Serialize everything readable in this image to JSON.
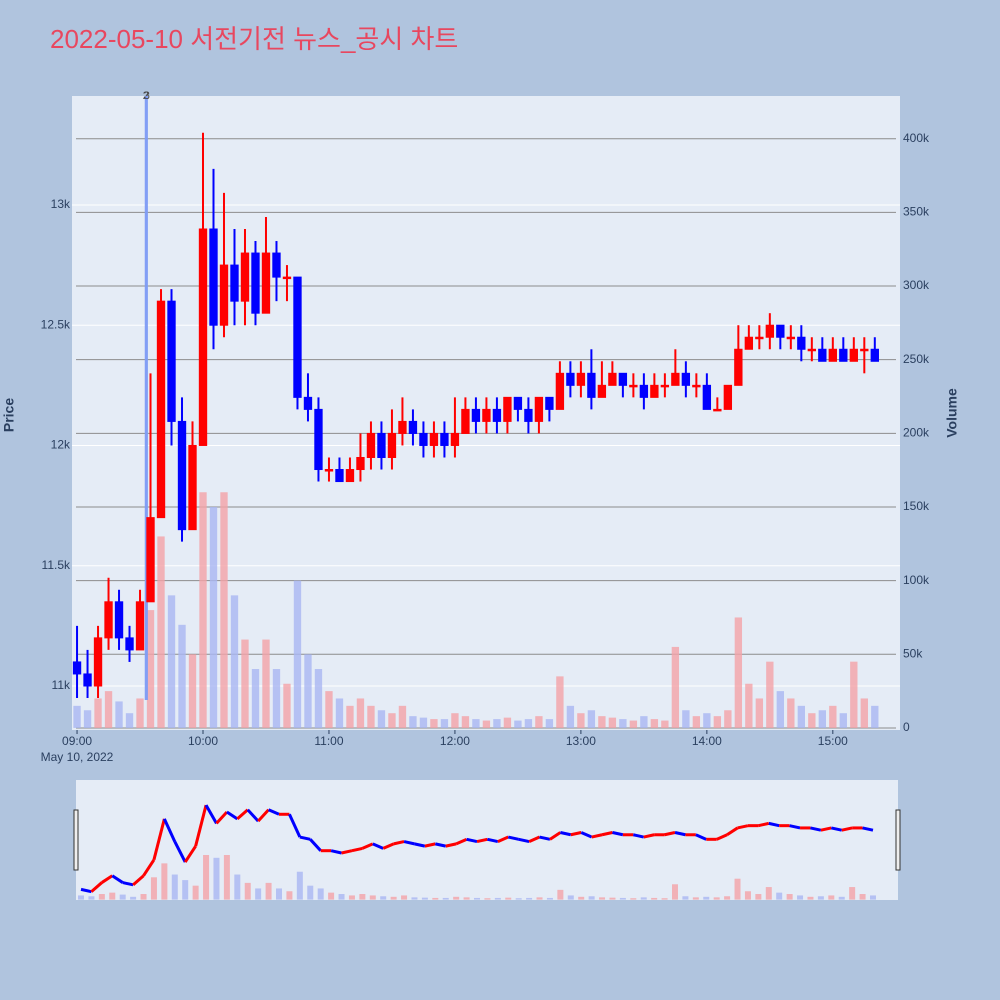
{
  "chart_data": {
    "type": "candlestick",
    "title": "2022-05-10 서전기전 뉴스_공시 차트",
    "ylabel": "Price",
    "y2label": "Volume",
    "x_date_label": "May 10, 2022",
    "x": [
      "2022-05-10 09:00",
      "2022-05-10 09:05",
      "2022-05-10 09:10",
      "2022-05-10 09:15",
      "2022-05-10 09:20",
      "2022-05-10 09:25",
      "2022-05-10 09:30",
      "2022-05-10 09:35",
      "2022-05-10 09:40",
      "2022-05-10 09:45",
      "2022-05-10 09:50",
      "2022-05-10 09:55",
      "2022-05-10 10:00",
      "2022-05-10 10:05",
      "2022-05-10 10:10",
      "2022-05-10 10:15",
      "2022-05-10 10:20",
      "2022-05-10 10:25",
      "2022-05-10 10:30",
      "2022-05-10 10:35",
      "2022-05-10 10:40",
      "2022-05-10 10:45",
      "2022-05-10 10:50",
      "2022-05-10 10:55",
      "2022-05-10 11:00",
      "2022-05-10 11:05",
      "2022-05-10 11:10",
      "2022-05-10 11:15",
      "2022-05-10 11:20",
      "2022-05-10 11:25",
      "2022-05-10 11:30",
      "2022-05-10 11:35",
      "2022-05-10 11:40",
      "2022-05-10 11:45",
      "2022-05-10 11:50",
      "2022-05-10 11:55",
      "2022-05-10 12:00",
      "2022-05-10 12:05",
      "2022-05-10 12:10",
      "2022-05-10 12:15",
      "2022-05-10 12:20",
      "2022-05-10 12:25",
      "2022-05-10 12:30",
      "2022-05-10 12:35",
      "2022-05-10 12:40",
      "2022-05-10 12:45",
      "2022-05-10 12:50",
      "2022-05-10 12:55",
      "2022-05-10 13:00",
      "2022-05-10 13:05",
      "2022-05-10 13:10",
      "2022-05-10 13:15",
      "2022-05-10 13:20",
      "2022-05-10 13:25",
      "2022-05-10 13:30",
      "2022-05-10 13:35",
      "2022-05-10 13:40",
      "2022-05-10 13:45",
      "2022-05-10 13:50",
      "2022-05-10 13:55",
      "2022-05-10 14:00",
      "2022-05-10 14:05",
      "2022-05-10 14:10",
      "2022-05-10 14:15",
      "2022-05-10 14:20",
      "2022-05-10 14:25",
      "2022-05-10 14:30",
      "2022-05-10 14:35",
      "2022-05-10 14:40",
      "2022-05-10 14:45",
      "2022-05-10 14:50",
      "2022-05-10 14:55",
      "2022-05-10 15:00",
      "2022-05-10 15:05",
      "2022-05-10 15:10",
      "2022-05-10 15:15",
      "2022-05-10 15:20"
    ],
    "open": [
      11100,
      11050,
      11000,
      11200,
      11350,
      11200,
      11150,
      11350,
      11700,
      12600,
      12100,
      11650,
      12000,
      12900,
      12500,
      12750,
      12600,
      12800,
      12550,
      12800,
      12700,
      12700,
      12200,
      12150,
      11900,
      11900,
      11850,
      11900,
      11950,
      12050,
      11950,
      12050,
      12100,
      12050,
      12000,
      12050,
      12000,
      12050,
      12150,
      12100,
      12150,
      12100,
      12200,
      12150,
      12100,
      12200,
      12150,
      12300,
      12250,
      12300,
      12200,
      12250,
      12300,
      12250,
      12250,
      12200,
      12250,
      12250,
      12300,
      12250,
      12250,
      12150,
      12150,
      12250,
      12400,
      12450,
      12450,
      12500,
      12450,
      12450,
      12400,
      12400,
      12350,
      12400,
      12350,
      12400,
      12400
    ],
    "high": [
      11250,
      11150,
      11250,
      11450,
      11400,
      11250,
      11400,
      12300,
      12650,
      12650,
      12200,
      12100,
      13300,
      13150,
      13050,
      12900,
      12900,
      12850,
      12950,
      12850,
      12750,
      12700,
      12300,
      12200,
      11950,
      11950,
      11950,
      12050,
      12100,
      12100,
      12150,
      12200,
      12150,
      12100,
      12100,
      12100,
      12200,
      12200,
      12200,
      12200,
      12200,
      12200,
      12200,
      12200,
      12200,
      12200,
      12350,
      12350,
      12350,
      12400,
      12350,
      12350,
      12300,
      12300,
      12300,
      12300,
      12300,
      12400,
      12350,
      12300,
      12300,
      12200,
      12250,
      12500,
      12500,
      12500,
      12550,
      12500,
      12500,
      12500,
      12450,
      12450,
      12450,
      12450,
      12450,
      12450,
      12450
    ],
    "low": [
      10950,
      10950,
      10950,
      11150,
      11150,
      11100,
      11150,
      11350,
      11700,
      12000,
      11600,
      11650,
      12000,
      12400,
      12450,
      12500,
      12500,
      12500,
      12550,
      12600,
      12600,
      12150,
      12100,
      11850,
      11850,
      11850,
      11850,
      11850,
      11900,
      11900,
      11900,
      12000,
      12000,
      11950,
      11950,
      11950,
      11950,
      12050,
      12050,
      12050,
      12050,
      12050,
      12100,
      12050,
      12050,
      12100,
      12150,
      12200,
      12200,
      12150,
      12200,
      12250,
      12200,
      12200,
      12150,
      12200,
      12200,
      12250,
      12200,
      12200,
      12150,
      12150,
      12150,
      12250,
      12400,
      12400,
      12400,
      12400,
      12400,
      12350,
      12350,
      12350,
      12350,
      12350,
      12350,
      12300,
      12350
    ],
    "close": [
      11050,
      11000,
      11200,
      11350,
      11200,
      11150,
      11350,
      11700,
      12600,
      12100,
      11650,
      12000,
      12900,
      12500,
      12750,
      12600,
      12800,
      12550,
      12800,
      12700,
      12700,
      12200,
      12150,
      11900,
      11900,
      11850,
      11900,
      11950,
      12050,
      11950,
      12050,
      12100,
      12050,
      12000,
      12050,
      12000,
      12050,
      12150,
      12100,
      12150,
      12100,
      12200,
      12150,
      12100,
      12200,
      12150,
      12300,
      12250,
      12300,
      12200,
      12250,
      12300,
      12250,
      12250,
      12200,
      12250,
      12250,
      12300,
      12250,
      12250,
      12150,
      12150,
      12250,
      12400,
      12450,
      12450,
      12500,
      12450,
      12450,
      12400,
      12400,
      12350,
      12400,
      12350,
      12400,
      12400,
      12350
    ],
    "volume": [
      15000,
      12000,
      20000,
      25000,
      18000,
      10000,
      20000,
      80000,
      130000,
      90000,
      70000,
      50000,
      160000,
      150000,
      160000,
      90000,
      60000,
      40000,
      60000,
      40000,
      30000,
      100000,
      50000,
      40000,
      25000,
      20000,
      15000,
      20000,
      15000,
      12000,
      10000,
      15000,
      8000,
      7000,
      6000,
      6000,
      10000,
      8000,
      6000,
      5000,
      6000,
      7000,
      5000,
      6000,
      8000,
      6000,
      35000,
      15000,
      10000,
      12000,
      8000,
      7000,
      6000,
      5000,
      8000,
      6000,
      5000,
      55000,
      12000,
      8000,
      10000,
      8000,
      12000,
      75000,
      30000,
      20000,
      45000,
      25000,
      20000,
      15000,
      10000,
      12000,
      15000,
      10000,
      45000,
      20000,
      15000
    ],
    "increasing_color": "#ff0000",
    "decreasing_color": "#0000ff",
    "volume_increasing_color": "#f4a3a8",
    "volume_decreasing_color": "#a9b6f2",
    "xlim": [
      "2022-05-10 08:57:36",
      "2022-05-10 15:32:00"
    ],
    "xticks": [
      {
        "value": "2022-05-10 09:00",
        "label": "09:00"
      },
      {
        "value": "2022-05-10 10:00",
        "label": "10:00"
      },
      {
        "value": "2022-05-10 11:00",
        "label": "11:00"
      },
      {
        "value": "2022-05-10 12:00",
        "label": "12:00"
      },
      {
        "value": "2022-05-10 13:00",
        "label": "13:00"
      },
      {
        "value": "2022-05-10 14:00",
        "label": "14:00"
      },
      {
        "value": "2022-05-10 15:00",
        "label": "15:00"
      }
    ],
    "ylim": [
      10817,
      13453
    ],
    "yticks": [
      {
        "value": 11000,
        "label": "11k"
      },
      {
        "value": 11500,
        "label": "11.5k"
      },
      {
        "value": 12000,
        "label": "12k"
      },
      {
        "value": 12500,
        "label": "12.5k"
      },
      {
        "value": 13000,
        "label": "13k"
      }
    ],
    "y2lim": [
      -1400,
      429000
    ],
    "y2ticks": [
      0,
      {
        "value": 50000,
        "label": "50k"
      },
      {
        "value": 100000,
        "label": "100k"
      },
      {
        "value": 150000,
        "label": "150k"
      },
      {
        "value": 200000,
        "label": "200k"
      },
      {
        "value": 250000,
        "label": "250k"
      },
      {
        "value": 300000,
        "label": "300k"
      },
      {
        "value": 350000,
        "label": "350k"
      },
      {
        "value": 400000,
        "label": "400k"
      }
    ],
    "annotations": [
      {
        "x": "2022-05-10 09:33",
        "text": "2"
      },
      {
        "x": "2022-05-10 09:33",
        "text": "3"
      }
    ],
    "annotation_color": "#7f9cf5",
    "grid": true,
    "rangeslider": true
  }
}
